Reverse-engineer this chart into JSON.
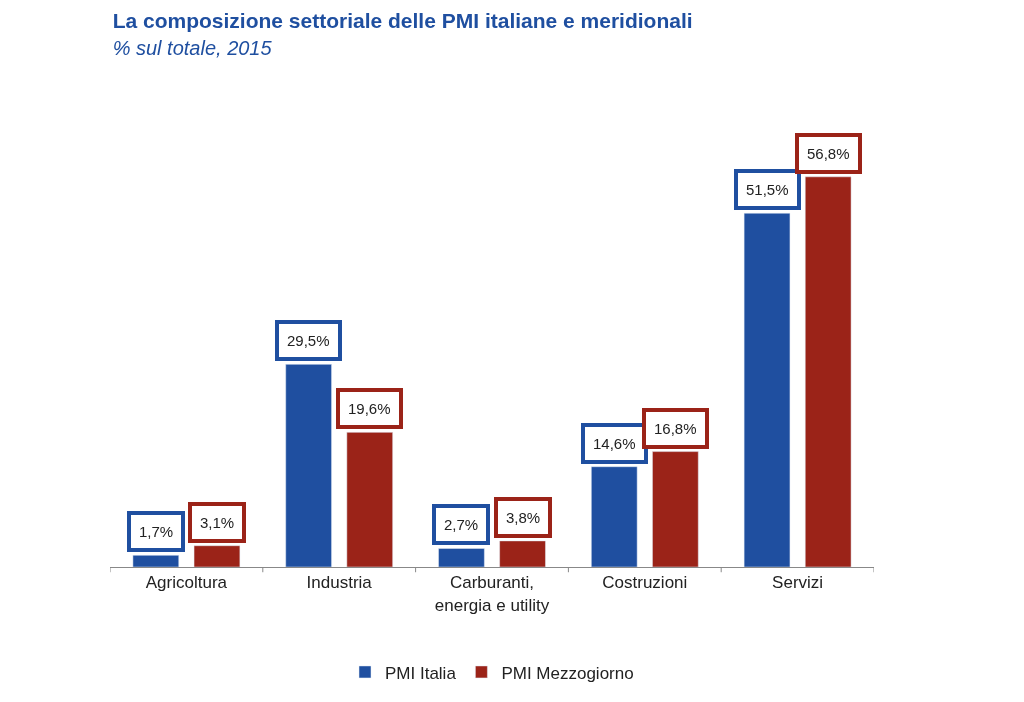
{
  "chart_data": {
    "type": "bar",
    "title": "La composizione settoriale delle PMI italiane e meridionali",
    "subtitle": "% sul totale, 2015",
    "categories": [
      "Agricoltura",
      "Industria",
      "Carburanti, energia e utility",
      "Costruzioni",
      "Servizi"
    ],
    "series": [
      {
        "name": "PMI Italia",
        "color": "#1f4fa0",
        "values": [
          1.7,
          29.5,
          2.7,
          14.6,
          51.5
        ],
        "value_labels": [
          "1,7%",
          "29,5%",
          "2,7%",
          "14,6%",
          "51,5%"
        ]
      },
      {
        "name": "PMI Mezzogiorno",
        "color": "#9b2318",
        "values": [
          3.1,
          19.6,
          3.8,
          16.8,
          56.8
        ],
        "value_labels": [
          "3,1%",
          "19,6%",
          "3,8%",
          "16,8%",
          "56,8%"
        ]
      }
    ],
    "legend": "bottom"
  }
}
